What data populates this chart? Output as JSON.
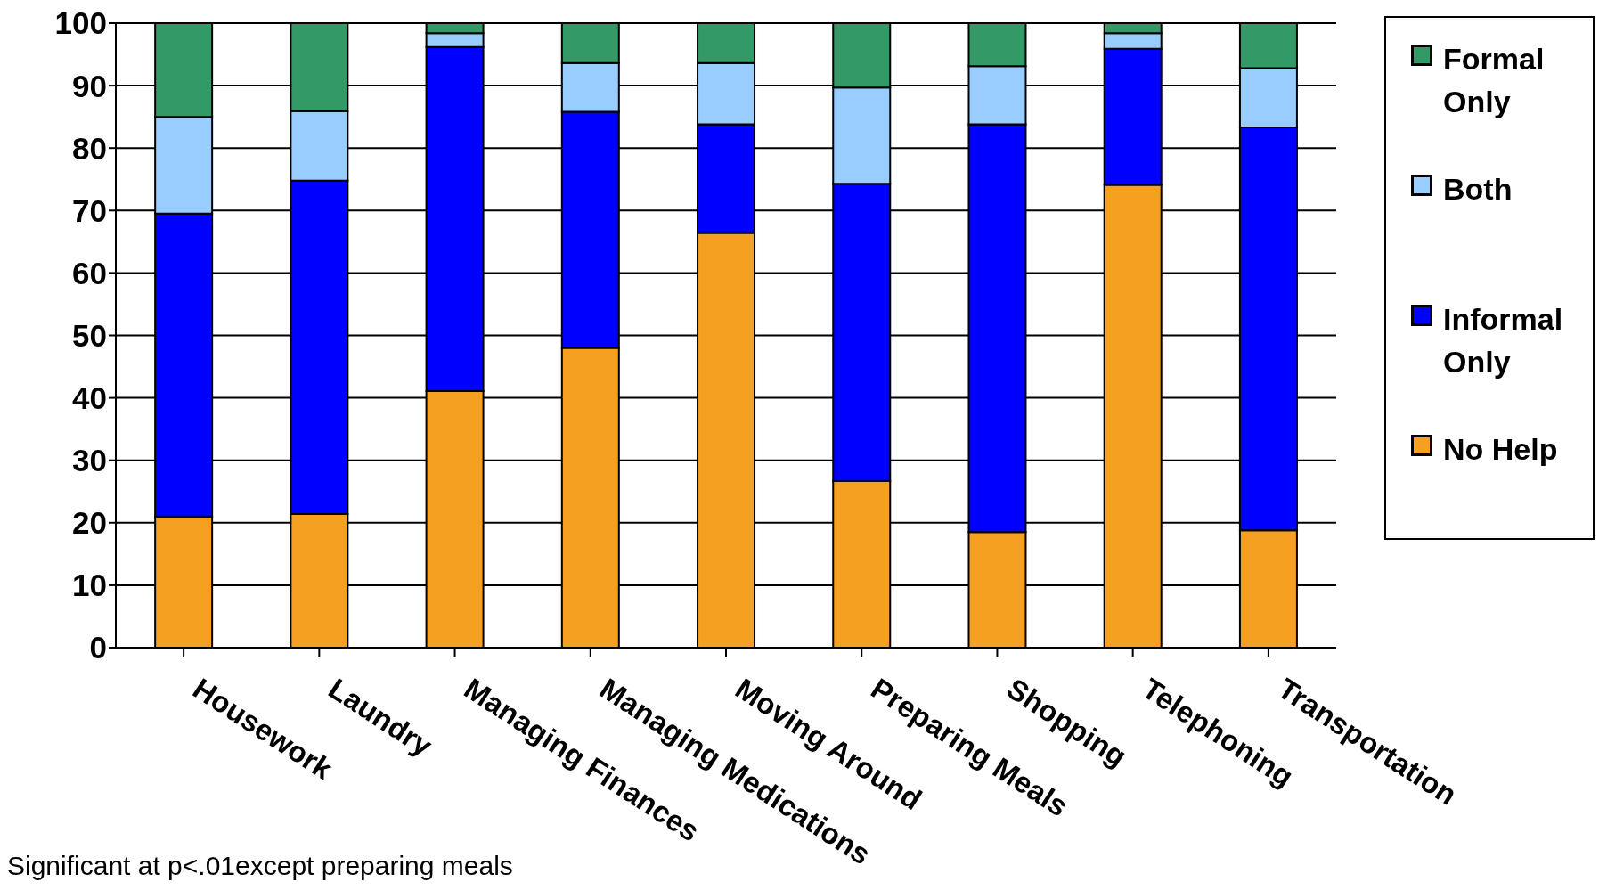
{
  "chart_data": {
    "type": "bar",
    "stacked": true,
    "categories": [
      "Housework",
      "Laundry",
      "Managing Finances",
      "Managing Medications",
      "Moving Around",
      "Preparing Meals",
      "Shopping",
      "Telephoning",
      "Transportation"
    ],
    "series": [
      {
        "name": "No Help",
        "color": "#f5a020",
        "values": [
          21,
          21.4,
          41.1,
          48,
          66.4,
          26.7,
          18.5,
          74.1,
          18.8
        ]
      },
      {
        "name": "Informal Only",
        "color": "#0000ff",
        "values": [
          48.5,
          53.4,
          55.1,
          37.8,
          17.4,
          47.6,
          65.3,
          21.8,
          64.5
        ]
      },
      {
        "name": "Both",
        "color": "#99ccff",
        "values": [
          15.5,
          11.1,
          2.2,
          7.8,
          9.8,
          15.4,
          9.3,
          2.5,
          9.5
        ]
      },
      {
        "name": "Formal Only",
        "color": "#339966",
        "values": [
          15,
          14.1,
          1.6,
          6.4,
          6.4,
          10.3,
          6.9,
          1.6,
          7.2
        ]
      }
    ],
    "ylim": [
      0,
      100
    ],
    "yticks": [
      0,
      10,
      20,
      30,
      40,
      50,
      60,
      70,
      80,
      90,
      100
    ],
    "grid": "y",
    "legend": "right",
    "annotations": [
      "Significant at p<.01except preparing meals"
    ]
  }
}
